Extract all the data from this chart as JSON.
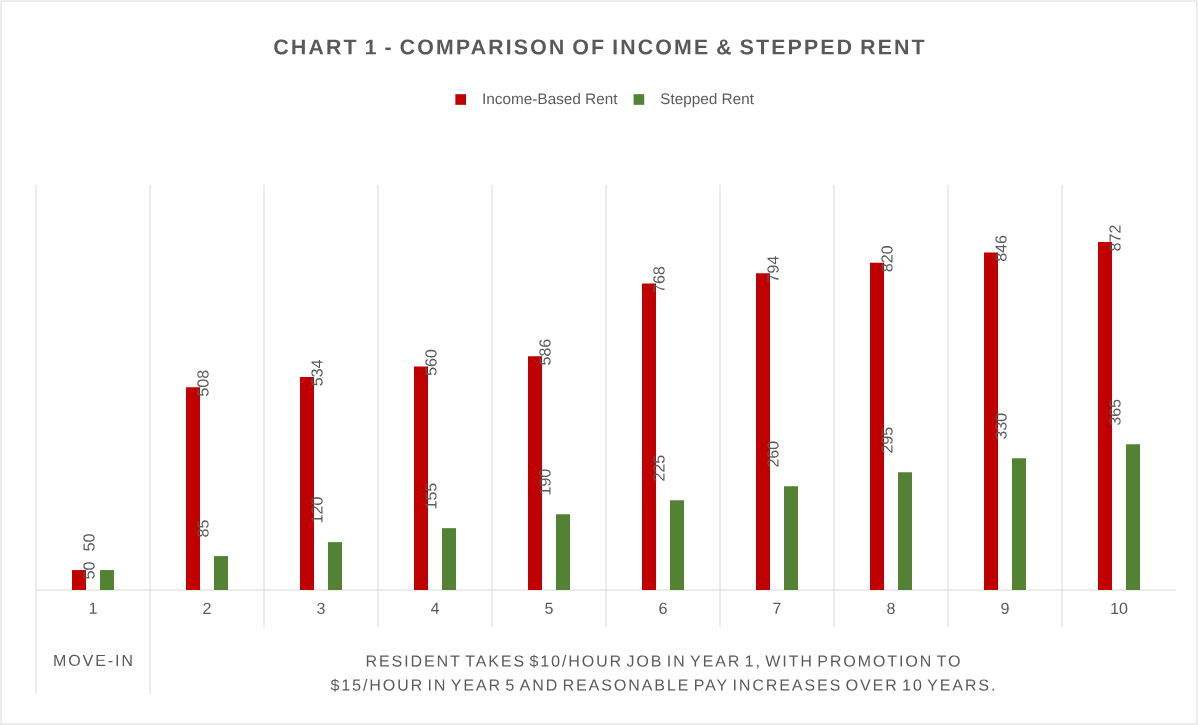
{
  "chart_data": {
    "type": "bar",
    "title": "CHART 1 - COMPARISON OF INCOME & STEPPED RENT",
    "categories": [
      "1",
      "2",
      "3",
      "4",
      "5",
      "6",
      "7",
      "8",
      "9",
      "10"
    ],
    "series": [
      {
        "name": "Income-Based Rent",
        "color": "#c00000",
        "values": [
          50,
          508,
          534,
          560,
          586,
          768,
          794,
          820,
          846,
          872
        ]
      },
      {
        "name": "Stepped Rent",
        "color": "#548235",
        "values": [
          50,
          85,
          120,
          155,
          190,
          225,
          260,
          295,
          330,
          365
        ]
      }
    ],
    "annotations": [
      "MOVE-IN",
      "RESIDENT TAKES $10/HOUR JOB IN YEAR 1, WITH PROMOTION TO $15/HOUR IN YEAR 5 AND REASONABLE PAY INCREASES OVER 10 YEARS."
    ],
    "data_labels": true,
    "grid": "x",
    "legend": "top"
  }
}
